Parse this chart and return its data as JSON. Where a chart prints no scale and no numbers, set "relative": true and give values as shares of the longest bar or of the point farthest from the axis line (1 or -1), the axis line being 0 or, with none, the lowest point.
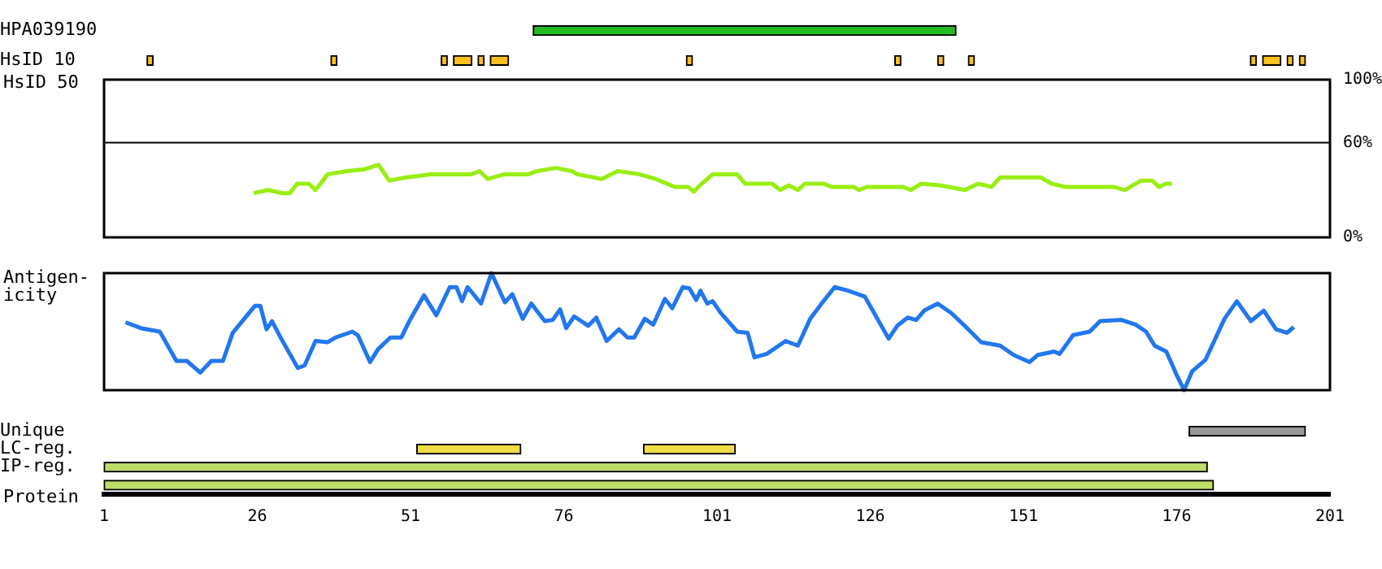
{
  "chart_data": [
    {
      "type": "bar",
      "orientation": "horizontal",
      "categories": [
        "HPA039190",
        "HsID 10"
      ],
      "xlim": [
        1,
        201
      ],
      "tick_labels": "y",
      "legend": false,
      "series": [
        {
          "color": "#22bb22",
          "base": [
            71,
            null
          ],
          "values": [
            69,
            null
          ]
        },
        {
          "color": "#ffc020",
          "base": [
            null,
            8
          ],
          "values": [
            null,
            1
          ]
        },
        {
          "color": "#ffc020",
          "base": [
            null,
            38
          ],
          "values": [
            null,
            1
          ]
        },
        {
          "color": "#ffc020",
          "base": [
            null,
            56
          ],
          "values": [
            null,
            1
          ]
        },
        {
          "color": "#ffc020",
          "base": [
            null,
            58
          ],
          "values": [
            null,
            3
          ]
        },
        {
          "color": "#ffc020",
          "base": [
            null,
            62
          ],
          "values": [
            null,
            1
          ]
        },
        {
          "color": "#ffc020",
          "base": [
            null,
            64
          ],
          "values": [
            null,
            3
          ]
        },
        {
          "color": "#ffc020",
          "base": [
            null,
            96
          ],
          "values": [
            null,
            1
          ]
        },
        {
          "color": "#ffc020",
          "base": [
            null,
            130
          ],
          "values": [
            null,
            1
          ]
        },
        {
          "color": "#ffc020",
          "base": [
            null,
            137
          ],
          "values": [
            null,
            1
          ]
        },
        {
          "color": "#ffc020",
          "base": [
            null,
            142
          ],
          "values": [
            null,
            1
          ]
        },
        {
          "color": "#ffc020",
          "base": [
            null,
            188
          ],
          "values": [
            null,
            1
          ]
        },
        {
          "color": "#ffc020",
          "base": [
            null,
            190
          ],
          "values": [
            null,
            3
          ]
        },
        {
          "color": "#ffc020",
          "base": [
            null,
            194
          ],
          "values": [
            null,
            1
          ]
        },
        {
          "color": "#ffc020",
          "base": [
            null,
            196
          ],
          "values": [
            null,
            1
          ]
        }
      ]
    },
    {
      "type": "line",
      "ylabel": "HsID 50",
      "xlim": [
        1,
        201
      ],
      "ylim": [
        0,
        100
      ],
      "yticks": [
        {
          "value": 0,
          "label": "0%"
        },
        {
          "value": 60,
          "label": "60%"
        },
        {
          "value": 100,
          "label": "100%"
        }
      ],
      "tick_labels": "y",
      "marker": "none",
      "legend": false,
      "ref_lines": [
        {
          "axis": "y",
          "value": 60,
          "color": "#000000"
        }
      ],
      "series": [
        {
          "color": "#99ee11",
          "x": [
            25.4,
            27.8,
            30,
            31.3,
            32.5,
            34.4,
            35.5,
            37.5,
            40.6,
            43.3,
            45.8,
            47.5,
            50.3,
            54.3,
            60.9,
            62.3,
            63.6,
            66.3,
            70.2,
            71.6,
            74.7,
            77.3,
            78.2,
            82.2,
            84.8,
            88.3,
            91,
            94.1,
            96.3,
            97.2,
            98.5,
            100.3,
            104.3,
            105.6,
            110,
            111.3,
            112.7,
            114.2,
            115.3,
            118.4,
            119.7,
            123.3,
            124.2,
            125.5,
            131.3,
            132.6,
            134.3,
            137.4,
            141.4,
            143.6,
            145.8,
            147.2,
            153.8,
            155.6,
            157.8,
            165.7,
            167.5,
            170.2,
            172,
            173.1,
            174.2,
            175.2
          ],
          "values": [
            28,
            30,
            28,
            28,
            34,
            34,
            30,
            40,
            42,
            43,
            46,
            36,
            38,
            40,
            40,
            42,
            37,
            40,
            40,
            42,
            44,
            42,
            40,
            37,
            42,
            40,
            37,
            32,
            32,
            29,
            34,
            40,
            40,
            34,
            34,
            30,
            33,
            30,
            34,
            34,
            32,
            32,
            30,
            32,
            32,
            30,
            34,
            33,
            30,
            34,
            32,
            38,
            38,
            34,
            32,
            32,
            30,
            36,
            36,
            32,
            34,
            34
          ]
        }
      ]
    },
    {
      "type": "line",
      "ylabel": "Antigen-icity",
      "relative": true,
      "xlim": [
        1,
        201
      ],
      "tick_labels": false,
      "marker": "none",
      "legend": false,
      "series": [
        {
          "color": "#2277ee",
          "x": [
            4.5,
            7,
            10.1,
            12.8,
            14.5,
            16.7,
            18.5,
            20.4,
            22,
            25.6,
            26.5,
            27.5,
            28.4,
            29.8,
            32.6,
            33.7,
            35.5,
            37.5,
            38.8,
            41.5,
            42.4,
            44.4,
            45.7,
            47.7,
            49.5,
            50.8,
            53.2,
            55.2,
            57.4,
            58.5,
            59.4,
            60.3,
            62.5,
            64.2,
            66.4,
            67.6,
            69.3,
            70.7,
            72.9,
            74.2,
            75.4,
            76.4,
            77.7,
            80,
            81.3,
            83,
            85,
            86.4,
            87.5,
            89.2,
            90.6,
            92.5,
            93.7,
            95.4,
            96.5,
            97.6,
            98.3,
            99.4,
            100.3,
            101.6,
            104.3,
            106,
            107.1,
            109.1,
            112.2,
            114.2,
            116.2,
            118.2,
            120.2,
            122.4,
            125.1,
            129,
            130.4,
            132.1,
            133.5,
            134.8,
            137,
            139.2,
            141.4,
            144.1,
            147.2,
            149.4,
            152,
            153.3,
            156,
            156.9,
            159.1,
            161.8,
            163.5,
            167,
            169.3,
            171,
            172.4,
            174.3,
            175.9,
            177.2,
            178.5,
            180.7,
            183.8,
            185.8,
            188.1,
            190.2,
            192.2,
            194,
            195.1
          ],
          "values": [
            0.58,
            0.53,
            0.5,
            0.25,
            0.25,
            0.15,
            0.25,
            0.25,
            0.49,
            0.72,
            0.72,
            0.52,
            0.59,
            0.45,
            0.19,
            0.21,
            0.42,
            0.41,
            0.45,
            0.5,
            0.47,
            0.24,
            0.35,
            0.45,
            0.45,
            0.59,
            0.81,
            0.64,
            0.88,
            0.88,
            0.76,
            0.88,
            0.74,
            1,
            0.75,
            0.82,
            0.61,
            0.74,
            0.59,
            0.6,
            0.69,
            0.53,
            0.63,
            0.55,
            0.62,
            0.42,
            0.52,
            0.45,
            0.45,
            0.61,
            0.56,
            0.78,
            0.7,
            0.88,
            0.87,
            0.77,
            0.85,
            0.74,
            0.76,
            0.66,
            0.5,
            0.49,
            0.28,
            0.31,
            0.42,
            0.38,
            0.61,
            0.75,
            0.88,
            0.85,
            0.8,
            0.44,
            0.55,
            0.62,
            0.6,
            0.68,
            0.74,
            0.66,
            0.55,
            0.41,
            0.38,
            0.3,
            0.24,
            0.3,
            0.33,
            0.31,
            0.47,
            0.5,
            0.59,
            0.6,
            0.56,
            0.5,
            0.38,
            0.33,
            0.14,
            0,
            0.16,
            0.26,
            0.61,
            0.76,
            0.59,
            0.68,
            0.52,
            0.49,
            0.54
          ]
        }
      ]
    },
    {
      "type": "bar",
      "orientation": "horizontal",
      "categories": [
        "Unique",
        "LC-reg.",
        "IP-reg.",
        null
      ],
      "xlabel": "Protein",
      "xlim": [
        1,
        201
      ],
      "xticks": [
        1,
        26,
        51,
        76,
        101,
        126,
        151,
        176,
        201
      ],
      "legend": false,
      "series": [
        {
          "color": "#999999",
          "base": [
            178,
            null,
            null,
            null
          ],
          "values": [
            19,
            null,
            null,
            null
          ]
        },
        {
          "color": "#eedd44",
          "base": [
            null,
            52,
            null,
            null
          ],
          "values": [
            null,
            17,
            null,
            null
          ]
        },
        {
          "color": "#eedd44",
          "base": [
            null,
            89,
            null,
            null
          ],
          "values": [
            null,
            15,
            null,
            null
          ]
        },
        {
          "color": "#bbdd66",
          "base": [
            null,
            null,
            1,
            1
          ],
          "values": [
            null,
            null,
            180,
            181
          ]
        }
      ]
    }
  ]
}
